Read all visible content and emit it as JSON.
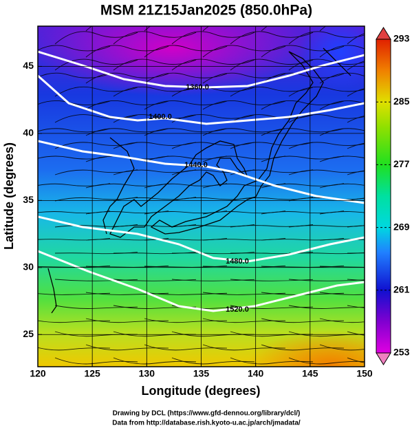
{
  "chart_data": {
    "type": "map",
    "title": "MSM 21Z15Jan2025 (850.0hPa)",
    "x_label": "Longitude (degrees)",
    "y_label": "Latitude  (degrees)",
    "xlim": [
      120,
      150
    ],
    "ylim": [
      22.6,
      48
    ],
    "xticks": [
      120,
      125,
      130,
      135,
      140,
      145,
      150
    ],
    "yticks": [
      25,
      30,
      35,
      40,
      45
    ],
    "grid": true,
    "colorbar": {
      "lim": [
        253,
        293
      ],
      "ticks": [
        253,
        261,
        269,
        277,
        285,
        293
      ]
    },
    "contours": [
      {
        "value": 1360,
        "label": "1360.0"
      },
      {
        "value": 1400,
        "label": "1400.0"
      },
      {
        "value": 1440,
        "label": "1440.0"
      },
      {
        "value": 1480,
        "label": "1480.0"
      },
      {
        "value": 1520,
        "label": "1520.0"
      }
    ],
    "credits": [
      "Drawing by DCL (https://www.gfd-dennou.org/library/dcl/)",
      "Data from http://database.rish.kyoto-u.ac.jp/arch/jmadata/"
    ]
  }
}
